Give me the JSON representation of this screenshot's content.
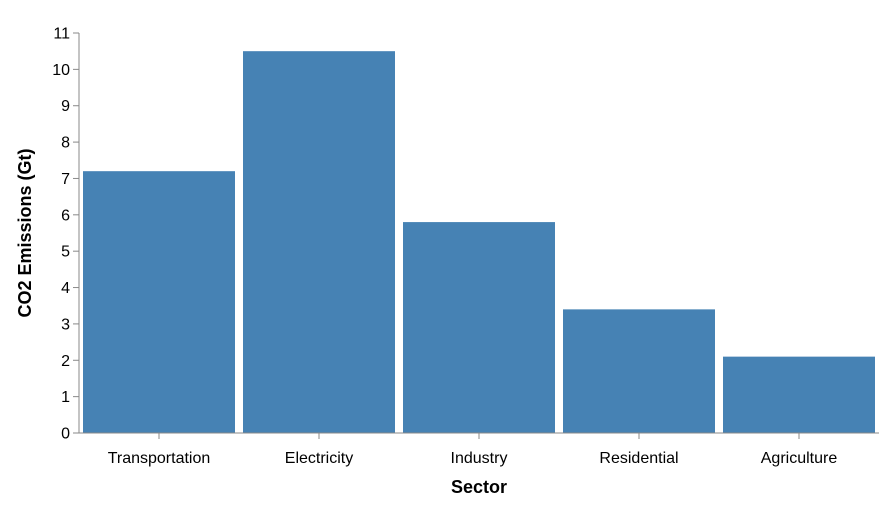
{
  "chart_data": {
    "type": "bar",
    "categories": [
      "Transportation",
      "Electricity",
      "Industry",
      "Residential",
      "Agriculture"
    ],
    "values": [
      7.2,
      10.5,
      5.8,
      3.4,
      2.1
    ],
    "xlabel": "Sector",
    "ylabel": "CO2 Emissions (Gt)",
    "ylim": [
      0,
      11
    ],
    "yticks": [
      0,
      1,
      2,
      3,
      4,
      5,
      6,
      7,
      8,
      9,
      10,
      11
    ],
    "grid": false,
    "legend": "none",
    "bar_color": "#4682b4",
    "axis_color": "#888888"
  }
}
